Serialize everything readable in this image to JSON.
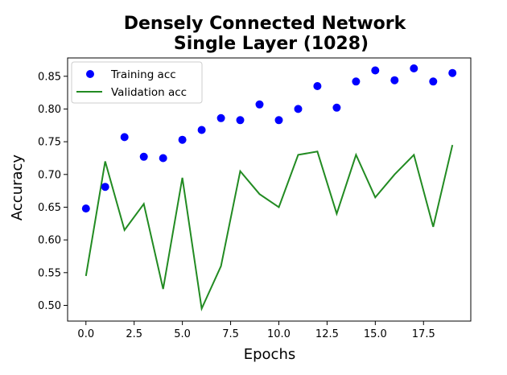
{
  "chart_data": {
    "type": "line",
    "title_line1": "Densely Connected Network",
    "title_line2": "Single Layer (1028)",
    "xlabel": "Epochs",
    "ylabel": "Accuracy",
    "xlim": [
      -0.95,
      19.95
    ],
    "ylim": [
      0.476,
      0.878
    ],
    "xticks": [
      0.0,
      2.5,
      5.0,
      7.5,
      10.0,
      12.5,
      15.0,
      17.5
    ],
    "xtick_labels": [
      "0.0",
      "2.5",
      "5.0",
      "7.5",
      "10.0",
      "12.5",
      "15.0",
      "17.5"
    ],
    "yticks": [
      0.5,
      0.55,
      0.6,
      0.65,
      0.7,
      0.75,
      0.8,
      0.85
    ],
    "ytick_labels": [
      "0.50",
      "0.55",
      "0.60",
      "0.65",
      "0.70",
      "0.75",
      "0.80",
      "0.85"
    ],
    "grid": false,
    "legend_position": "top-left",
    "x": [
      0,
      1,
      2,
      3,
      4,
      5,
      6,
      7,
      8,
      9,
      10,
      11,
      12,
      13,
      14,
      15,
      16,
      17,
      18,
      19
    ],
    "series": [
      {
        "name": "Training acc",
        "style": "scatter",
        "color": "#0000ff",
        "values": [
          0.648,
          0.681,
          0.757,
          0.727,
          0.725,
          0.753,
          0.768,
          0.786,
          0.783,
          0.807,
          0.783,
          0.8,
          0.835,
          0.802,
          0.842,
          0.859,
          0.844,
          0.862,
          0.842,
          0.855
        ]
      },
      {
        "name": "Validation acc",
        "style": "line",
        "color": "#228b22",
        "values": [
          0.545,
          0.72,
          0.615,
          0.655,
          0.525,
          0.695,
          0.495,
          0.56,
          0.705,
          0.67,
          0.65,
          0.73,
          0.735,
          0.64,
          0.73,
          0.665,
          0.7,
          0.73,
          0.62,
          0.745
        ]
      }
    ]
  }
}
